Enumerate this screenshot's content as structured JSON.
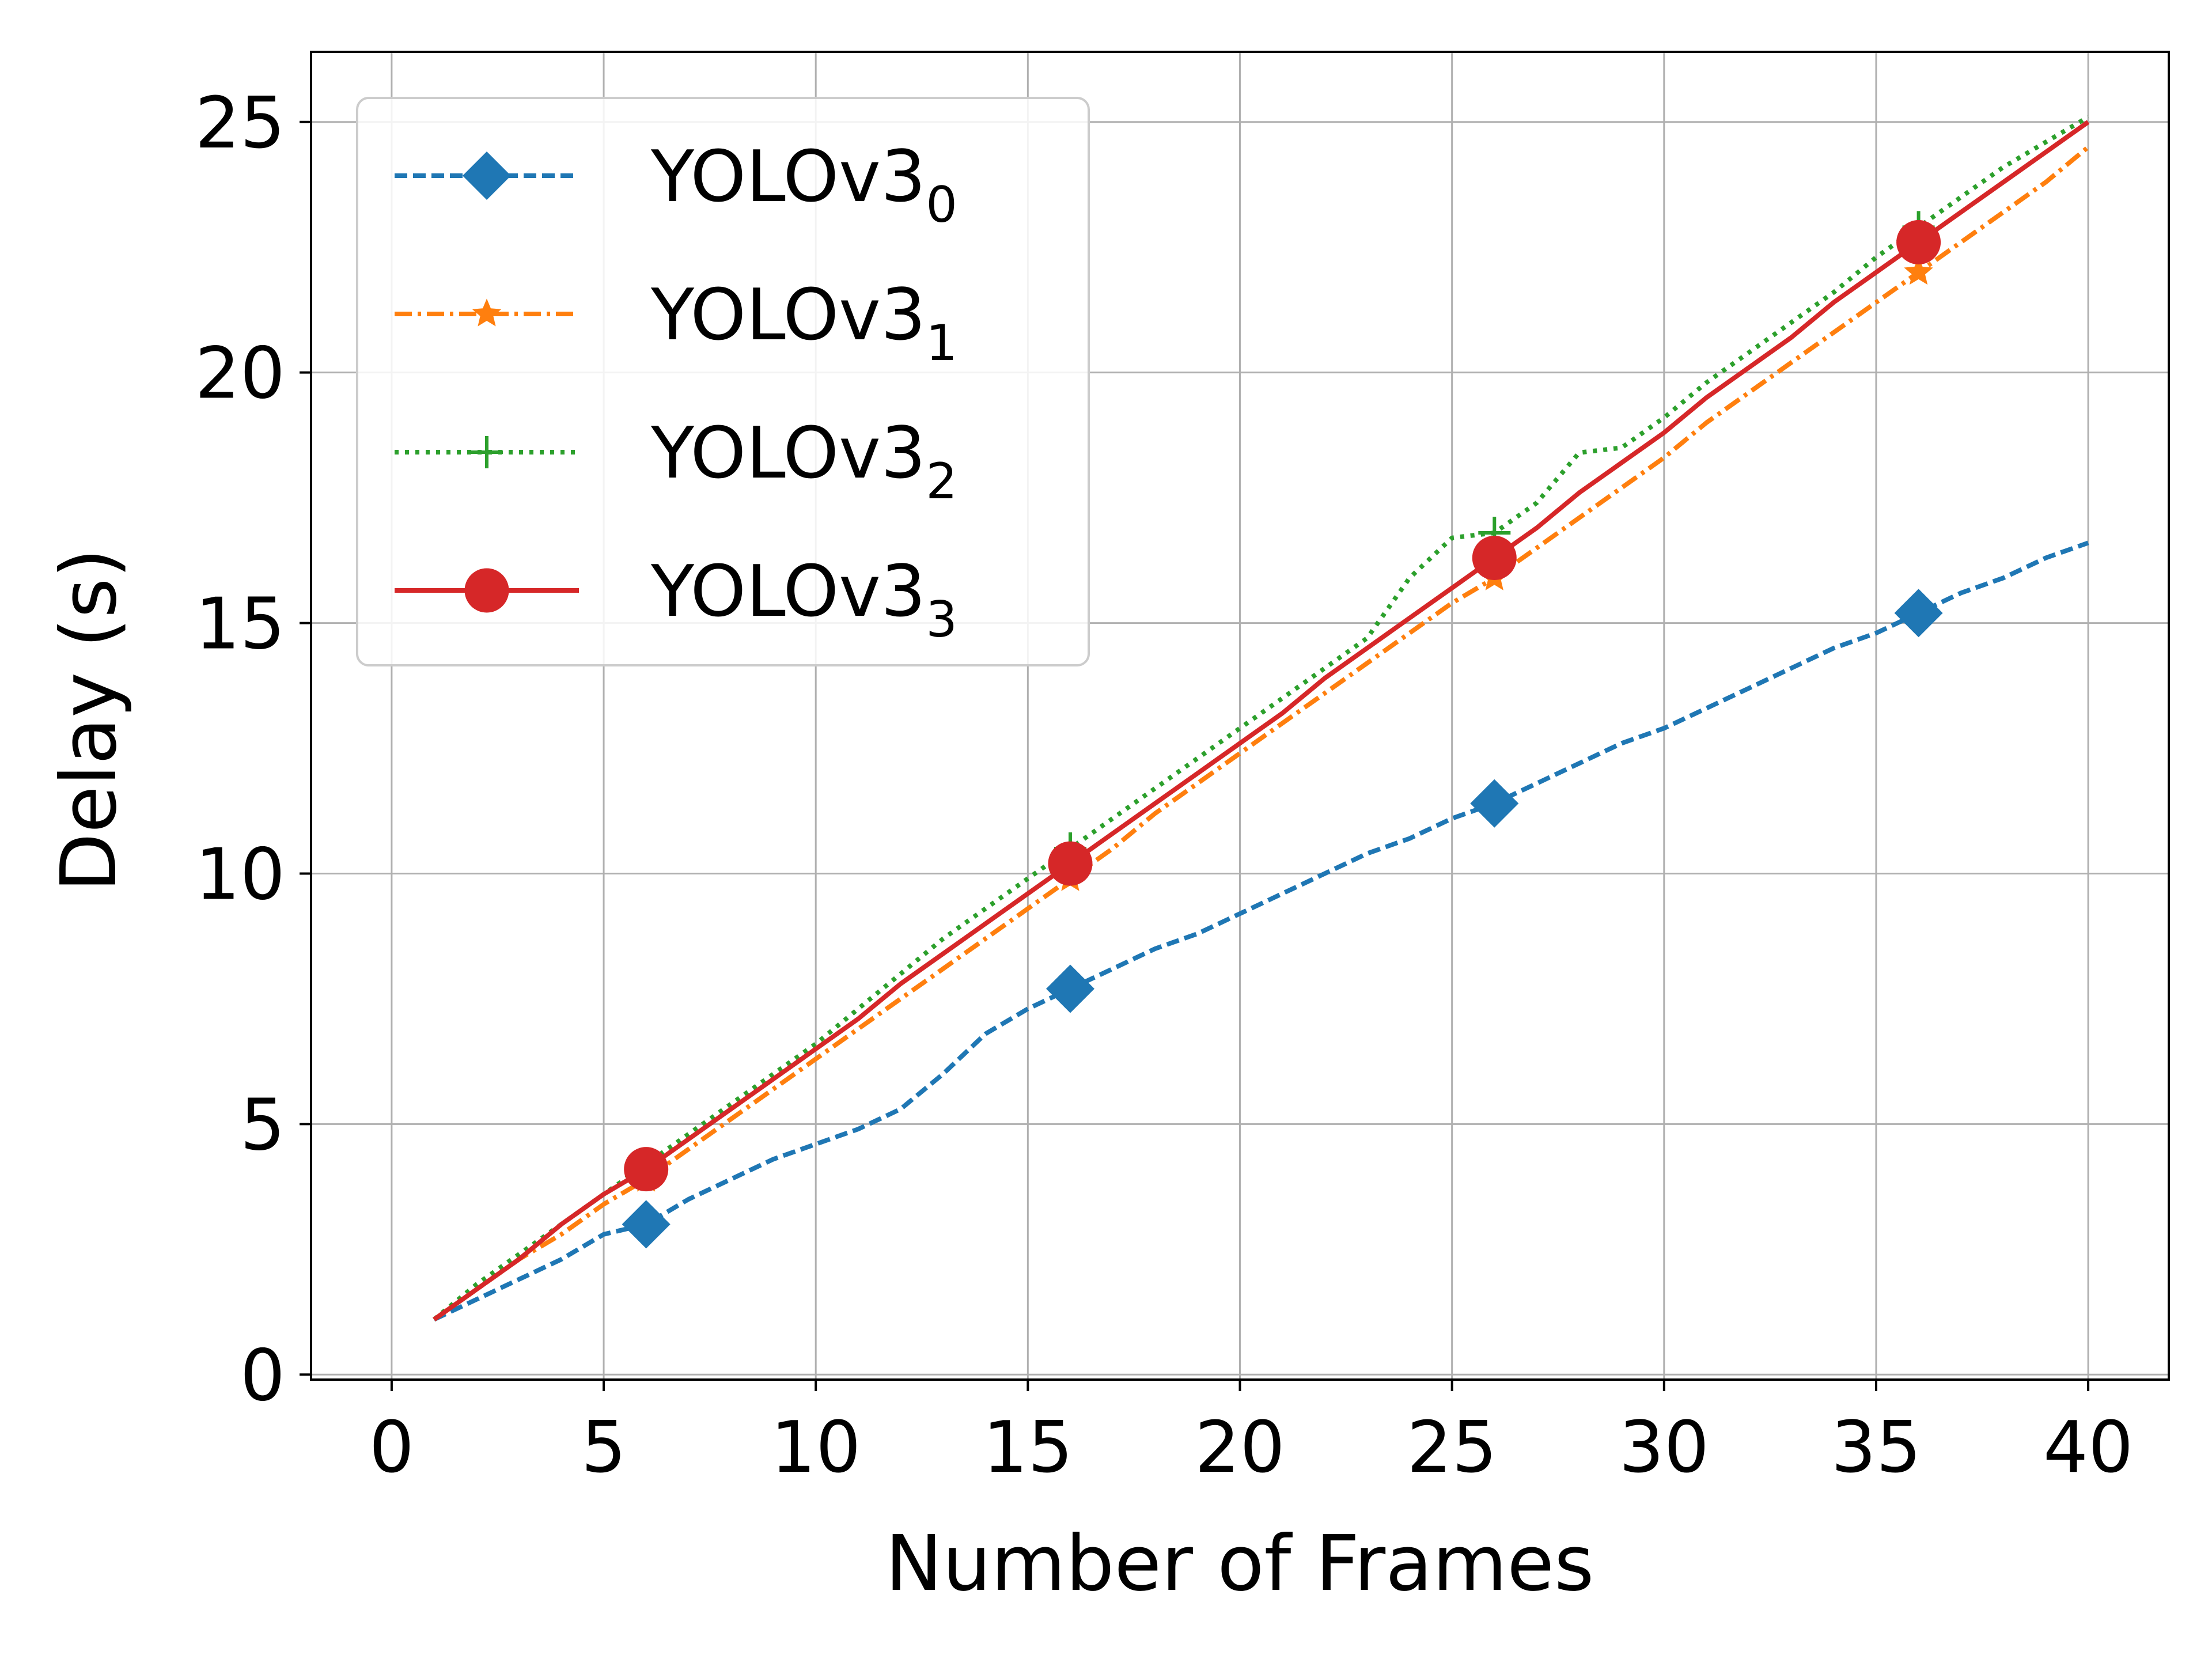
{
  "chart_data": {
    "type": "line",
    "title": "",
    "xlabel": "Number of Frames",
    "ylabel": "Delay (s)",
    "xlim": [
      -1.9,
      41.9
    ],
    "ylim": [
      -0.1,
      26.4
    ],
    "xticks": [
      0,
      5,
      10,
      15,
      20,
      25,
      30,
      35,
      40
    ],
    "yticks": [
      0,
      5,
      10,
      15,
      20,
      25
    ],
    "grid": true,
    "legend": "upper-left",
    "x": [
      1,
      2,
      3,
      4,
      5,
      6,
      7,
      8,
      9,
      10,
      11,
      12,
      13,
      14,
      15,
      16,
      17,
      18,
      19,
      20,
      21,
      22,
      23,
      24,
      25,
      26,
      27,
      28,
      29,
      30,
      31,
      32,
      33,
      34,
      35,
      36,
      37,
      38,
      39,
      40
    ],
    "series": [
      {
        "name": "YOLOv3",
        "subscript": "0",
        "color": "#1f77b4",
        "dash": "dashed",
        "marker": "diamond",
        "marker_every": [
          6,
          16,
          26,
          36
        ],
        "values": [
          1.1,
          1.5,
          1.9,
          2.3,
          2.8,
          3.0,
          3.5,
          3.9,
          4.3,
          4.6,
          4.9,
          5.3,
          6.0,
          6.8,
          7.3,
          7.7,
          8.1,
          8.5,
          8.8,
          9.2,
          9.6,
          10.0,
          10.4,
          10.7,
          11.1,
          11.4,
          11.8,
          12.2,
          12.6,
          12.9,
          13.3,
          13.7,
          14.1,
          14.5,
          14.8,
          15.2,
          15.6,
          15.9,
          16.3,
          16.6
        ]
      },
      {
        "name": "YOLOv3",
        "subscript": "1",
        "color": "#ff7f0e",
        "dash": "dashdot",
        "marker": "star",
        "marker_every": [
          6,
          16,
          26,
          36
        ],
        "values": [
          1.1,
          1.7,
          2.3,
          2.8,
          3.4,
          3.9,
          4.5,
          5.1,
          5.7,
          6.3,
          6.9,
          7.5,
          8.1,
          8.7,
          9.3,
          9.9,
          10.5,
          11.2,
          11.8,
          12.4,
          13.0,
          13.6,
          14.2,
          14.8,
          15.4,
          15.9,
          16.5,
          17.1,
          17.7,
          18.3,
          19.0,
          19.6,
          20.2,
          20.8,
          21.4,
          22.0,
          22.6,
          23.2,
          23.8,
          24.5
        ]
      },
      {
        "name": "YOLOv3",
        "subscript": "2",
        "color": "#2ca02c",
        "dash": "dotted",
        "marker": "plus",
        "marker_every": [
          6,
          16,
          26,
          36
        ],
        "values": [
          1.1,
          1.8,
          2.4,
          3.0,
          3.6,
          4.2,
          4.8,
          5.4,
          6.0,
          6.6,
          7.3,
          8.0,
          8.7,
          9.3,
          9.9,
          10.5,
          11.1,
          11.7,
          12.3,
          12.9,
          13.5,
          14.1,
          14.7,
          15.9,
          16.7,
          16.8,
          17.4,
          18.4,
          18.5,
          19.1,
          19.8,
          20.4,
          21.0,
          21.6,
          22.3,
          22.9,
          23.5,
          24.1,
          24.6,
          25.1
        ]
      },
      {
        "name": "YOLOv3",
        "subscript": "3",
        "color": "#d62728",
        "dash": "solid",
        "marker": "circle",
        "marker_every": [
          6,
          16,
          26,
          36
        ],
        "values": [
          1.1,
          1.7,
          2.3,
          3.0,
          3.6,
          4.1,
          4.7,
          5.3,
          5.9,
          6.5,
          7.1,
          7.8,
          8.4,
          9.0,
          9.6,
          10.2,
          10.8,
          11.4,
          12.0,
          12.6,
          13.2,
          13.9,
          14.5,
          15.1,
          15.7,
          16.3,
          16.9,
          17.6,
          18.2,
          18.8,
          19.5,
          20.1,
          20.7,
          21.4,
          22.0,
          22.6,
          23.2,
          23.8,
          24.4,
          25.0
        ]
      }
    ]
  }
}
